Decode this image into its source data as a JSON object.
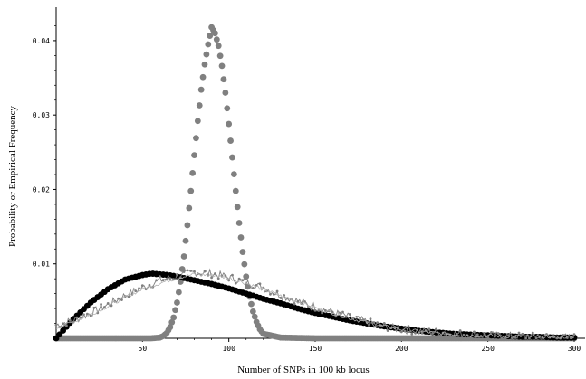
{
  "chart_data": {
    "type": "scatter",
    "title": "",
    "xlabel": "Number of SNPs in 100 kb locus",
    "ylabel": "Probability or Empirical Frequency",
    "xlim": [
      0,
      300
    ],
    "ylim": [
      0,
      0.044
    ],
    "x_ticks": [
      50,
      100,
      150,
      200,
      250,
      300
    ],
    "y_ticks": [
      0.01,
      0.02,
      0.03,
      0.04
    ],
    "x_tick_labels": [
      "50",
      "100",
      "150",
      "200",
      "250",
      "300"
    ],
    "y_tick_labels": [
      "0.01",
      "0.02",
      "0.03",
      "0.04"
    ],
    "grid": false,
    "legend": "none",
    "colors": {
      "black": "#000000",
      "gray": "#808080",
      "light_gray": "#b0b0b0"
    },
    "series": [
      {
        "style": "gray-large-dots",
        "x": [
          0,
          10,
          20,
          30,
          40,
          50,
          55,
          60,
          62,
          64,
          66,
          68,
          70,
          72,
          74,
          76,
          78,
          80,
          82,
          84,
          86,
          88,
          90,
          92,
          94,
          96,
          98,
          100,
          102,
          104,
          106,
          108,
          110,
          112,
          114,
          116,
          118,
          120,
          130,
          150,
          200,
          250,
          300
        ],
        "y": [
          0,
          0,
          0,
          0,
          0,
          0,
          0,
          0.0001,
          0.0003,
          0.0007,
          0.0015,
          0.0028,
          0.0048,
          0.0076,
          0.011,
          0.0152,
          0.0198,
          0.0246,
          0.0292,
          0.0334,
          0.0368,
          0.0395,
          0.0418,
          0.041,
          0.0393,
          0.0366,
          0.033,
          0.0288,
          0.0243,
          0.0198,
          0.0155,
          0.0116,
          0.0083,
          0.0056,
          0.0036,
          0.0022,
          0.0012,
          0.0006,
          0.0001,
          0,
          0,
          0,
          0
        ]
      },
      {
        "style": "black-dots",
        "x": [
          0,
          10,
          20,
          30,
          40,
          50,
          55,
          60,
          65,
          70,
          80,
          90,
          100,
          110,
          120,
          130,
          140,
          150,
          160,
          170,
          180,
          190,
          200,
          210,
          220,
          230,
          240,
          250,
          260,
          270,
          280,
          290,
          300
        ],
        "y": [
          0,
          0.0026,
          0.0048,
          0.0066,
          0.0079,
          0.0085,
          0.0087,
          0.0086,
          0.0085,
          0.0083,
          0.0078,
          0.0073,
          0.0067,
          0.006,
          0.0053,
          0.0047,
          0.004,
          0.0034,
          0.0029,
          0.0024,
          0.002,
          0.0016,
          0.0013,
          0.001,
          0.0008,
          0.0006,
          0.0005,
          0.0004,
          0.0003,
          0.0002,
          0.0002,
          0.0001,
          0.0001
        ]
      },
      {
        "style": "gray-noisy-line",
        "x": [
          0,
          10,
          20,
          30,
          40,
          50,
          60,
          70,
          80,
          90,
          100,
          110,
          120,
          130,
          140,
          150,
          160,
          170,
          180,
          190,
          200,
          220,
          240,
          260,
          280,
          300
        ],
        "y": [
          0.0018,
          0.0024,
          0.0034,
          0.0045,
          0.0058,
          0.0068,
          0.0078,
          0.0083,
          0.0089,
          0.0087,
          0.0082,
          0.0075,
          0.0068,
          0.0058,
          0.005,
          0.0042,
          0.0035,
          0.0028,
          0.0022,
          0.0016,
          0.0012,
          0.0008,
          0.0005,
          0.0003,
          0.0002,
          0.0001
        ]
      },
      {
        "style": "light-gray-line",
        "x": [
          0,
          10,
          20,
          30,
          40,
          50,
          60,
          70,
          80,
          90,
          100,
          110,
          120,
          130,
          140,
          150,
          160,
          170,
          180,
          190,
          200,
          220,
          240,
          260,
          280,
          300
        ],
        "y": [
          0.0014,
          0.0022,
          0.0032,
          0.0043,
          0.0055,
          0.0066,
          0.0074,
          0.0081,
          0.0086,
          0.0085,
          0.0081,
          0.0074,
          0.0066,
          0.0057,
          0.0049,
          0.0041,
          0.0034,
          0.0027,
          0.0021,
          0.0016,
          0.0012,
          0.0007,
          0.0004,
          0.0003,
          0.0002,
          0.0001
        ]
      }
    ]
  }
}
